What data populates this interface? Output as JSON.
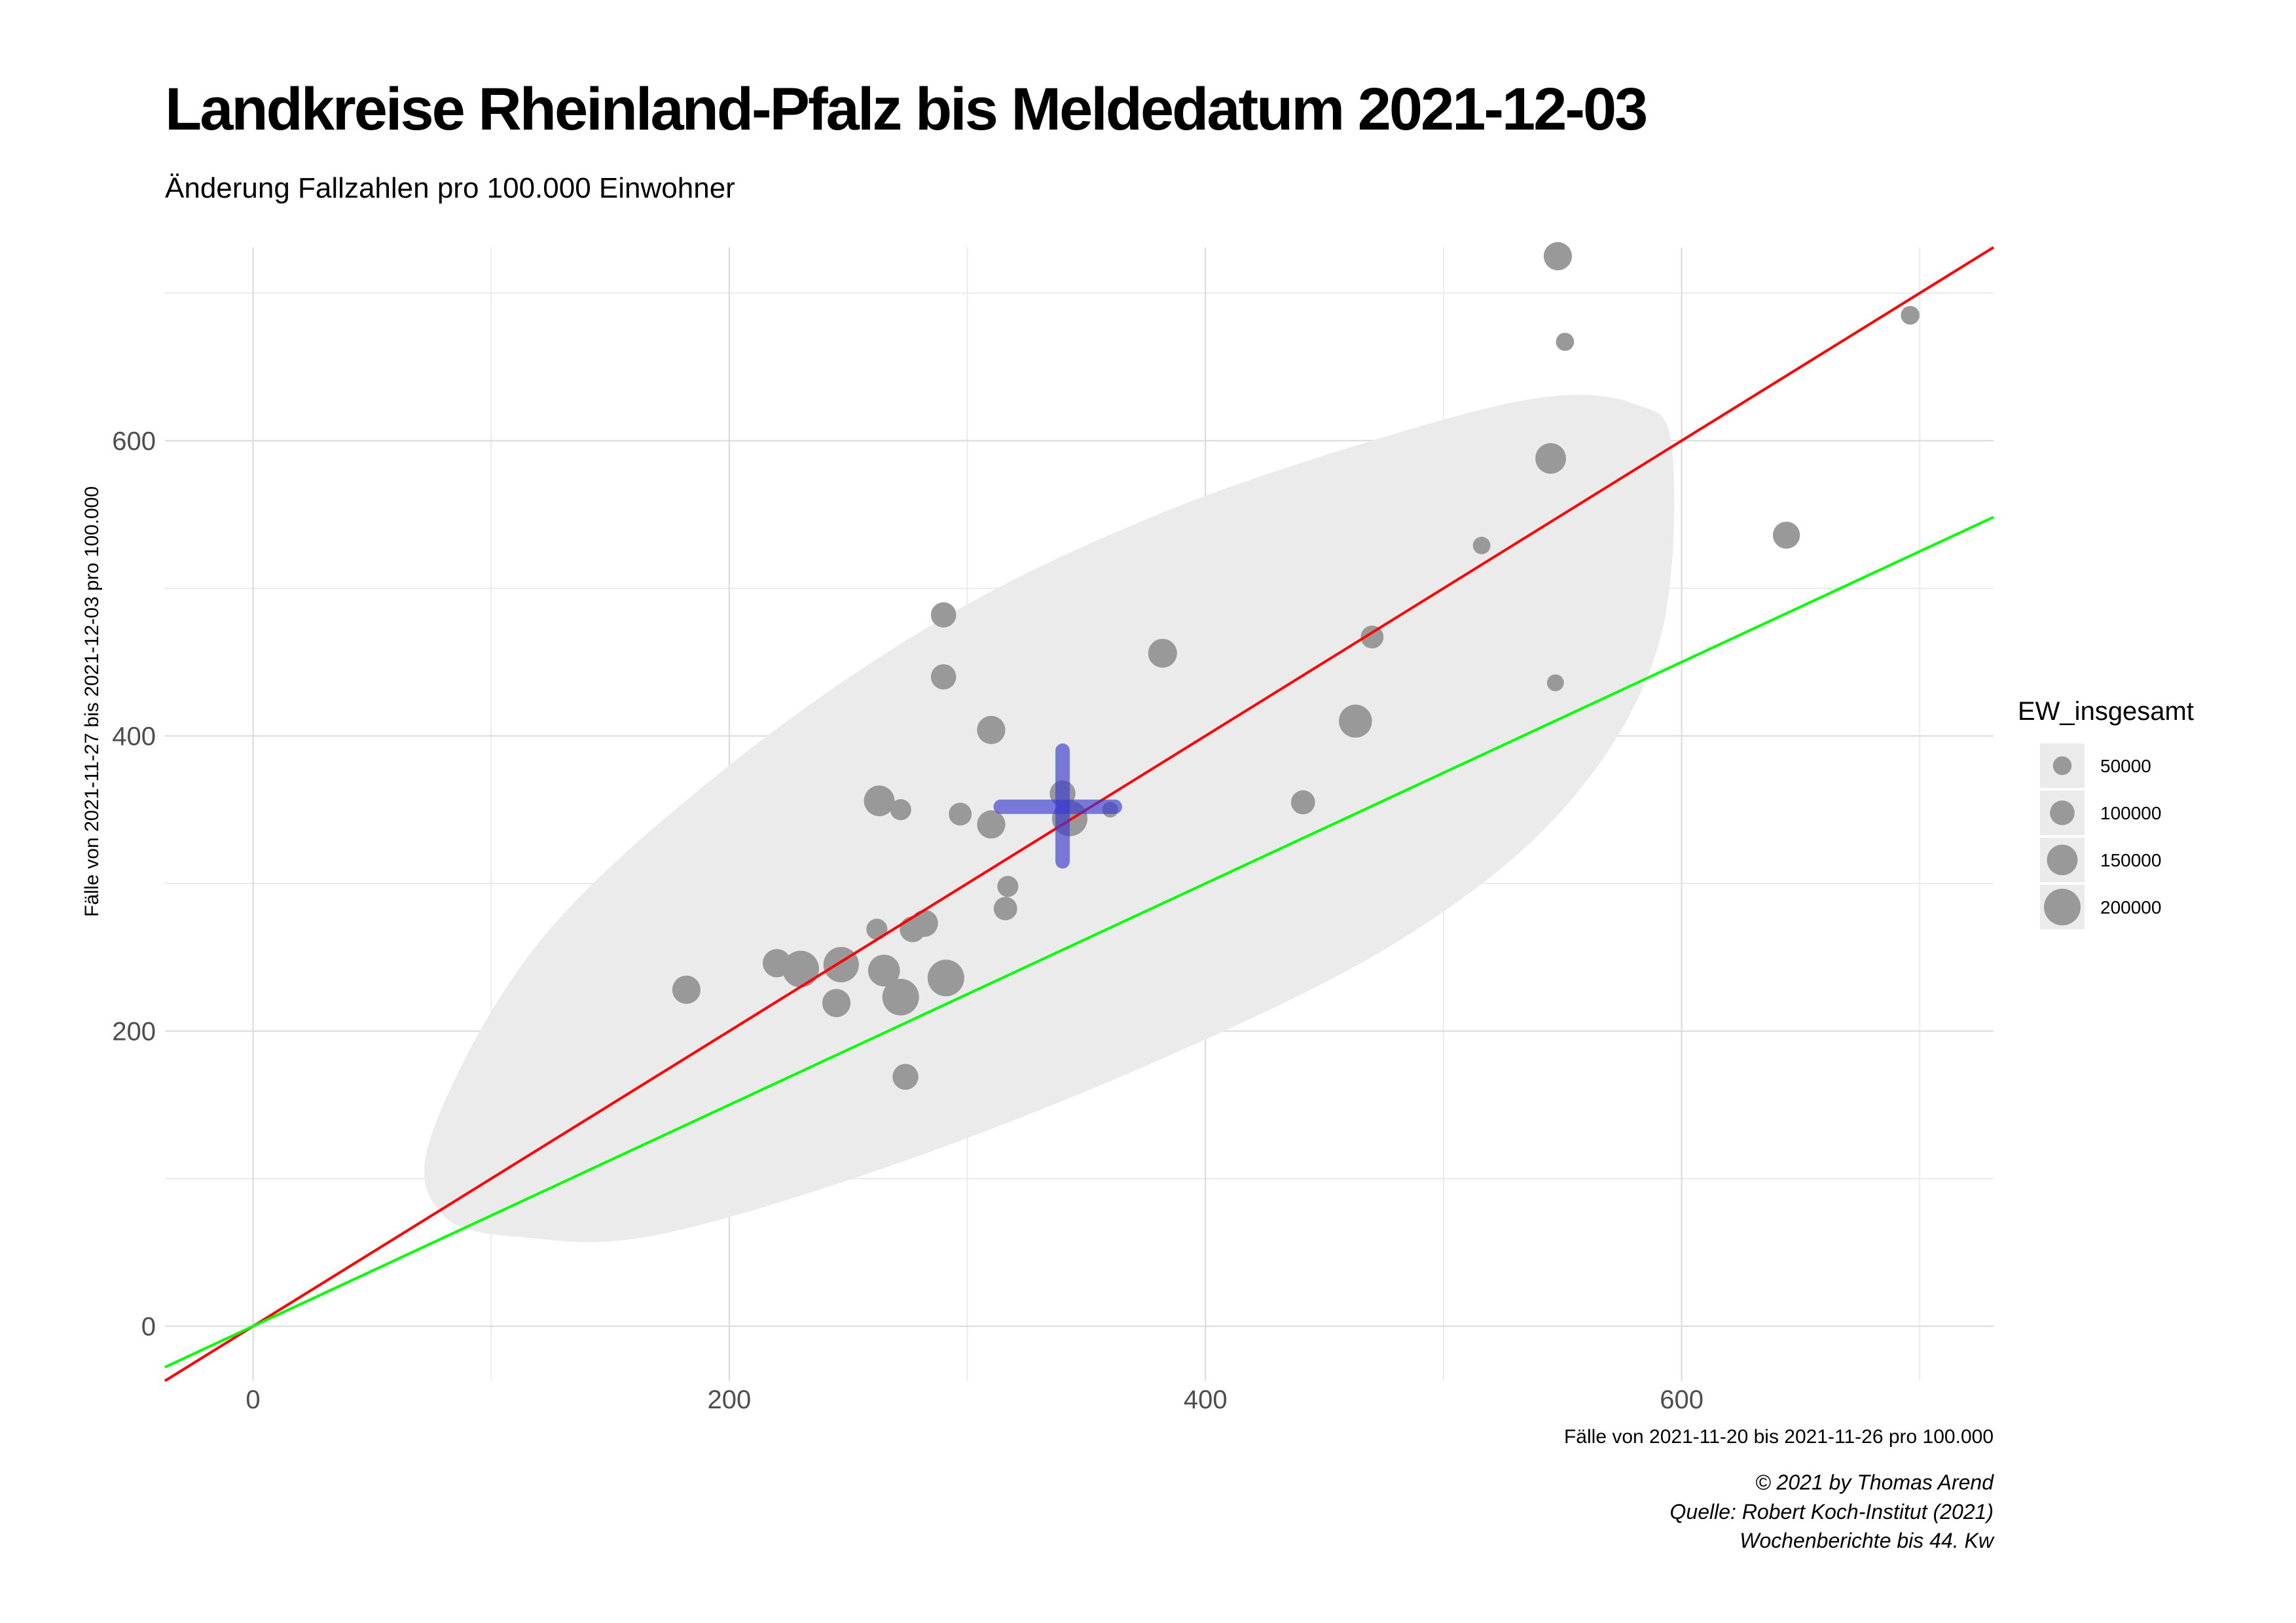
{
  "chart_data": {
    "type": "scatter",
    "title": "Landkreise Rheinland-Pfalz bis Meldedatum 2021-12-03",
    "subtitle": "Änderung Fallzahlen pro 100.000 Einwohner",
    "xlabel": "Fälle von 2021-11-20 bis 2021-11-26 pro 100.000",
    "ylabel": "Fälle von 2021-11-27 bis 2021-12-03 pro 100.000",
    "xlim": [
      -37,
      731
    ],
    "ylim": [
      -37,
      731
    ],
    "x_ticks": [
      0,
      200,
      400,
      600
    ],
    "y_ticks": [
      0,
      200,
      400,
      600
    ],
    "grid": true,
    "caption": [
      "© 2021 by Thomas Arend",
      "Quelle: Robert Koch-Institut (2021)",
      "Wochenberichte bis 44. Kw"
    ],
    "legend": {
      "title": "EW_insgesamt",
      "position": "right",
      "entries": [
        {
          "label": "50000",
          "value": 50000
        },
        {
          "label": "100000",
          "value": 100000
        },
        {
          "label": "150000",
          "value": 150000
        },
        {
          "label": "200000",
          "value": 200000
        }
      ]
    },
    "points": [
      {
        "x": 548,
        "y": 725,
        "ew": 130000
      },
      {
        "x": 696,
        "y": 685,
        "ew": 50000
      },
      {
        "x": 551,
        "y": 667,
        "ew": 45000
      },
      {
        "x": 545,
        "y": 588,
        "ew": 150000
      },
      {
        "x": 644,
        "y": 536,
        "ew": 120000
      },
      {
        "x": 516,
        "y": 529,
        "ew": 40000
      },
      {
        "x": 290,
        "y": 482,
        "ew": 105000
      },
      {
        "x": 470,
        "y": 467,
        "ew": 85000
      },
      {
        "x": 382,
        "y": 456,
        "ew": 135000
      },
      {
        "x": 290,
        "y": 440,
        "ew": 105000
      },
      {
        "x": 547,
        "y": 436,
        "ew": 35000
      },
      {
        "x": 463,
        "y": 410,
        "ew": 170000
      },
      {
        "x": 310,
        "y": 404,
        "ew": 130000
      },
      {
        "x": 263,
        "y": 356,
        "ew": 150000
      },
      {
        "x": 441,
        "y": 355,
        "ew": 95000
      },
      {
        "x": 340,
        "y": 361,
        "ew": 110000
      },
      {
        "x": 272,
        "y": 350,
        "ew": 70000
      },
      {
        "x": 297,
        "y": 347,
        "ew": 85000
      },
      {
        "x": 343,
        "y": 344,
        "ew": 190000
      },
      {
        "x": 360,
        "y": 350,
        "ew": 25000
      },
      {
        "x": 310,
        "y": 340,
        "ew": 130000
      },
      {
        "x": 317,
        "y": 298,
        "ew": 70000
      },
      {
        "x": 316,
        "y": 283,
        "ew": 90000
      },
      {
        "x": 262,
        "y": 269,
        "ew": 70000
      },
      {
        "x": 282,
        "y": 273,
        "ew": 120000
      },
      {
        "x": 277,
        "y": 269,
        "ew": 110000
      },
      {
        "x": 220,
        "y": 246,
        "ew": 130000
      },
      {
        "x": 230,
        "y": 242,
        "ew": 200000
      },
      {
        "x": 247,
        "y": 245,
        "ew": 190000
      },
      {
        "x": 265,
        "y": 241,
        "ew": 160000
      },
      {
        "x": 291,
        "y": 236,
        "ew": 200000
      },
      {
        "x": 182,
        "y": 228,
        "ew": 130000
      },
      {
        "x": 272,
        "y": 223,
        "ew": 200000
      },
      {
        "x": 245,
        "y": 219,
        "ew": 130000
      },
      {
        "x": 274,
        "y": 169,
        "ew": 110000
      }
    ],
    "center_cross": {
      "x": 340,
      "y": 352,
      "x_range": [
        314,
        362
      ],
      "y_range": [
        315,
        390
      ],
      "color": "#3a3ad0"
    },
    "ellipse": {
      "color": "#ebebeb",
      "outline": [
        [
          596,
          594
        ],
        [
          580,
          625
        ],
        [
          540,
          629
        ],
        [
          470,
          600
        ],
        [
          380,
          550
        ],
        [
          290,
          480
        ],
        [
          200,
          380
        ],
        [
          120,
          260
        ],
        [
          75,
          130
        ],
        [
          80,
          75
        ],
        [
          115,
          60
        ],
        [
          170,
          62
        ],
        [
          270,
          110
        ],
        [
          380,
          180
        ],
        [
          480,
          260
        ],
        [
          550,
          350
        ],
        [
          590,
          460
        ],
        [
          596,
          594
        ]
      ]
    },
    "lines": [
      {
        "color": "#ff0000",
        "slope": 1.0,
        "intercept": 0,
        "x_range": [
          -37,
          731
        ]
      },
      {
        "color": "#00ff00",
        "slope": 0.75,
        "intercept": 0,
        "x_range": [
          -37,
          731
        ]
      }
    ],
    "colors": {
      "points": "#999999",
      "grid_major": "#d9d9d9",
      "grid_minor": "#ebebeb",
      "tick_text": "#4d4d4d",
      "legend_key_bg": "#ebebeb"
    }
  }
}
